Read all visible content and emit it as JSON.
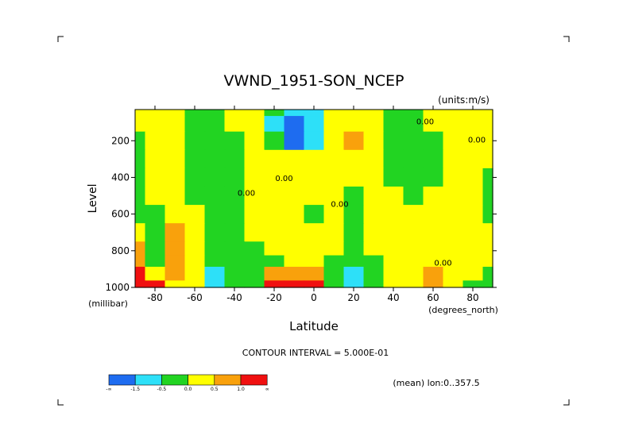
{
  "chart_data": {
    "type": "contour",
    "title": "VWND_1951-SON_NCEP",
    "units_label": "(units:m/s)",
    "xlabel": "Latitude",
    "x_units_label": "(degrees_north)",
    "ylabel": "Level",
    "y_units_label": "(millibar)",
    "xlim": [
      -90,
      90
    ],
    "ylim": [
      1000,
      30
    ],
    "y_inverted": true,
    "x_ticks": [
      -80,
      -60,
      -40,
      -20,
      0,
      20,
      40,
      60,
      80
    ],
    "x_tick_labels": [
      "-80",
      "-60",
      "-40",
      "-20",
      "0",
      "20",
      "40",
      "60",
      "80"
    ],
    "y_ticks": [
      200,
      400,
      600,
      800,
      1000
    ],
    "y_tick_labels": [
      "200",
      "400",
      "600",
      "800",
      "1000"
    ],
    "contour_interval_text": "CONTOUR INTERVAL = 5.000E-01",
    "mean_text": "(mean) lon:0..357.5",
    "contour_labels": [
      {
        "text": "0.00",
        "lat": 56,
        "lev": 110
      },
      {
        "text": "0.00",
        "lat": 82,
        "lev": 210
      },
      {
        "text": "0.00",
        "lat": -34,
        "lev": 500
      },
      {
        "text": "0.00",
        "lat": -15,
        "lev": 420
      },
      {
        "text": "0.00",
        "lat": 13,
        "lev": 560
      },
      {
        "text": "0.00",
        "lat": 65,
        "lev": 880
      }
    ],
    "colorbar": {
      "levels": [
        "-∞",
        "-1.5",
        "-0.5",
        "0.0",
        "0.5",
        "1.0",
        "∞"
      ],
      "colors": [
        "#1e6cf0",
        "#2de0f8",
        "#22d422",
        "#ffff00",
        "#f9a10c",
        "#f01010"
      ],
      "category_meaning": [
        "< -1.5",
        "-1.5 to -0.5",
        "-0.5 to 0.0",
        "0.0 to 0.5",
        "0.5 to 1.0",
        "> 1.0"
      ]
    },
    "field": {
      "lat": [
        -90,
        -80,
        -70,
        -60,
        -50,
        -40,
        -30,
        -20,
        -10,
        0,
        10,
        20,
        30,
        40,
        50,
        60,
        70,
        80,
        90
      ],
      "lev": [
        30,
        100,
        200,
        300,
        400,
        500,
        600,
        700,
        800,
        850,
        925,
        1000
      ],
      "values": [
        [
          0.2,
          0.2,
          0.3,
          -0.2,
          -0.3,
          0.2,
          0.2,
          -0.4,
          -0.9,
          -0.6,
          0.2,
          0.2,
          0.2,
          -0.2,
          -0.2,
          0.2,
          0.2,
          0.2,
          0.2
        ],
        [
          0.2,
          0.2,
          0.3,
          -0.2,
          -0.3,
          0.2,
          0.2,
          -0.7,
          -1.8,
          -1.4,
          0.2,
          0.2,
          0.2,
          -0.2,
          -0.2,
          0.2,
          0.2,
          0.2,
          0.2
        ],
        [
          -0.2,
          0.2,
          0.3,
          -0.2,
          -0.3,
          -0.2,
          0.2,
          -0.5,
          -1.6,
          -1.2,
          0.3,
          0.7,
          0.2,
          -0.2,
          -0.2,
          -0.2,
          0.2,
          0.2,
          0.2
        ],
        [
          -0.2,
          0.2,
          0.3,
          -0.2,
          -0.3,
          -0.2,
          0.2,
          0.2,
          0.2,
          0.2,
          0.2,
          0.2,
          0.2,
          -0.2,
          -0.2,
          -0.2,
          0.2,
          0.2,
          0.2
        ],
        [
          -0.2,
          0.2,
          0.3,
          -0.2,
          -0.3,
          -0.2,
          0.2,
          0.2,
          0.2,
          0.2,
          0.2,
          0.2,
          0.2,
          -0.2,
          -0.2,
          -0.2,
          0.2,
          0.2,
          -0.2
        ],
        [
          -0.2,
          0.2,
          0.3,
          -0.2,
          -0.3,
          -0.2,
          0.2,
          0.2,
          0.2,
          0.2,
          0.2,
          -0.2,
          0.2,
          0.2,
          -0.2,
          0.2,
          0.2,
          0.2,
          -0.2
        ],
        [
          -0.2,
          -0.2,
          0.3,
          0.2,
          -0.3,
          -0.2,
          0.2,
          0.2,
          0.2,
          -0.2,
          0.2,
          -0.2,
          0.2,
          0.2,
          0.2,
          0.2,
          0.2,
          0.2,
          -0.2
        ],
        [
          0.4,
          -0.2,
          0.7,
          0.2,
          -0.3,
          -0.2,
          0.2,
          0.2,
          0.2,
          0.2,
          0.2,
          -0.2,
          0.2,
          0.2,
          0.2,
          0.2,
          0.2,
          0.2,
          0.3
        ],
        [
          0.6,
          -0.2,
          0.8,
          0.2,
          -0.3,
          -0.2,
          -0.2,
          0.2,
          0.2,
          0.2,
          0.2,
          -0.2,
          0.2,
          0.2,
          0.2,
          0.2,
          0.2,
          0.2,
          0.3
        ],
        [
          0.8,
          -0.2,
          0.8,
          0.2,
          -0.3,
          -0.2,
          -0.2,
          -0.2,
          0.2,
          0.2,
          -0.2,
          -0.2,
          -0.2,
          0.2,
          0.2,
          0.2,
          0.2,
          0.2,
          0.3
        ],
        [
          1.2,
          0.2,
          0.6,
          0.2,
          -0.7,
          -0.3,
          -0.2,
          0.6,
          0.8,
          0.6,
          -0.3,
          -0.7,
          -0.3,
          0.2,
          0.2,
          0.6,
          0.2,
          0.2,
          -0.2
        ],
        [
          1.6,
          1.0,
          0.3,
          0.2,
          -1.2,
          -0.4,
          -0.2,
          1.2,
          1.8,
          1.2,
          -0.4,
          -1.2,
          -0.4,
          0.2,
          0.2,
          0.8,
          0.2,
          -0.2,
          -0.2
        ]
      ]
    }
  }
}
